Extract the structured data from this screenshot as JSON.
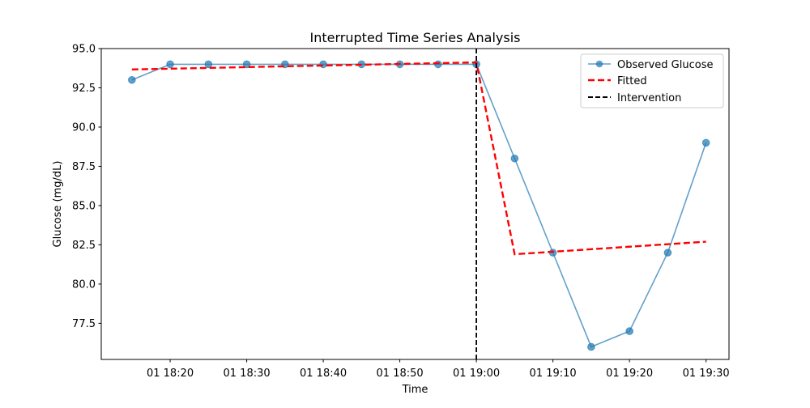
{
  "chart_data": {
    "type": "line",
    "title": "Interrupted Time Series Analysis",
    "xlabel": "Time",
    "ylabel": "Glucose (mg/dL)",
    "x_ticks": [
      "01 18:20",
      "01 18:30",
      "01 18:40",
      "01 18:50",
      "01 19:00",
      "01 19:10",
      "01 19:20",
      "01 19:30"
    ],
    "y_ticks": [
      "77.5",
      "80.0",
      "82.5",
      "85.0",
      "87.5",
      "90.0",
      "92.5",
      "95.0"
    ],
    "x_range": [
      "18:11",
      "19:33"
    ],
    "ylim": [
      75.2,
      95.0
    ],
    "grid": false,
    "legend_position": "upper right",
    "series": [
      {
        "name": "Observed Glucose",
        "style": "line-marker",
        "color": "#1f77b4",
        "x": [
          "18:15",
          "18:20",
          "18:25",
          "18:30",
          "18:35",
          "18:40",
          "18:45",
          "18:50",
          "18:55",
          "19:00",
          "19:05",
          "19:10",
          "19:15",
          "19:20",
          "19:25",
          "19:30"
        ],
        "y": [
          93,
          94,
          94,
          94,
          94,
          94,
          94,
          94,
          94,
          94,
          88,
          82,
          76,
          77,
          82,
          89
        ]
      },
      {
        "name": "Fitted",
        "style": "dashed",
        "color": "#ff0000",
        "x": [
          "18:15",
          "18:20",
          "18:25",
          "18:30",
          "18:35",
          "18:40",
          "18:45",
          "18:50",
          "18:55",
          "19:00",
          "19:05",
          "19:10",
          "19:15",
          "19:20",
          "19:25",
          "19:30"
        ],
        "y": [
          93.67,
          93.72,
          93.77,
          93.82,
          93.87,
          93.92,
          93.97,
          94.02,
          94.07,
          94.12,
          81.9,
          82.06,
          82.22,
          82.38,
          82.54,
          82.7
        ]
      }
    ],
    "vlines": [
      {
        "name": "Intervention",
        "x": "19:00",
        "color": "#000000",
        "style": "dashed"
      }
    ]
  }
}
